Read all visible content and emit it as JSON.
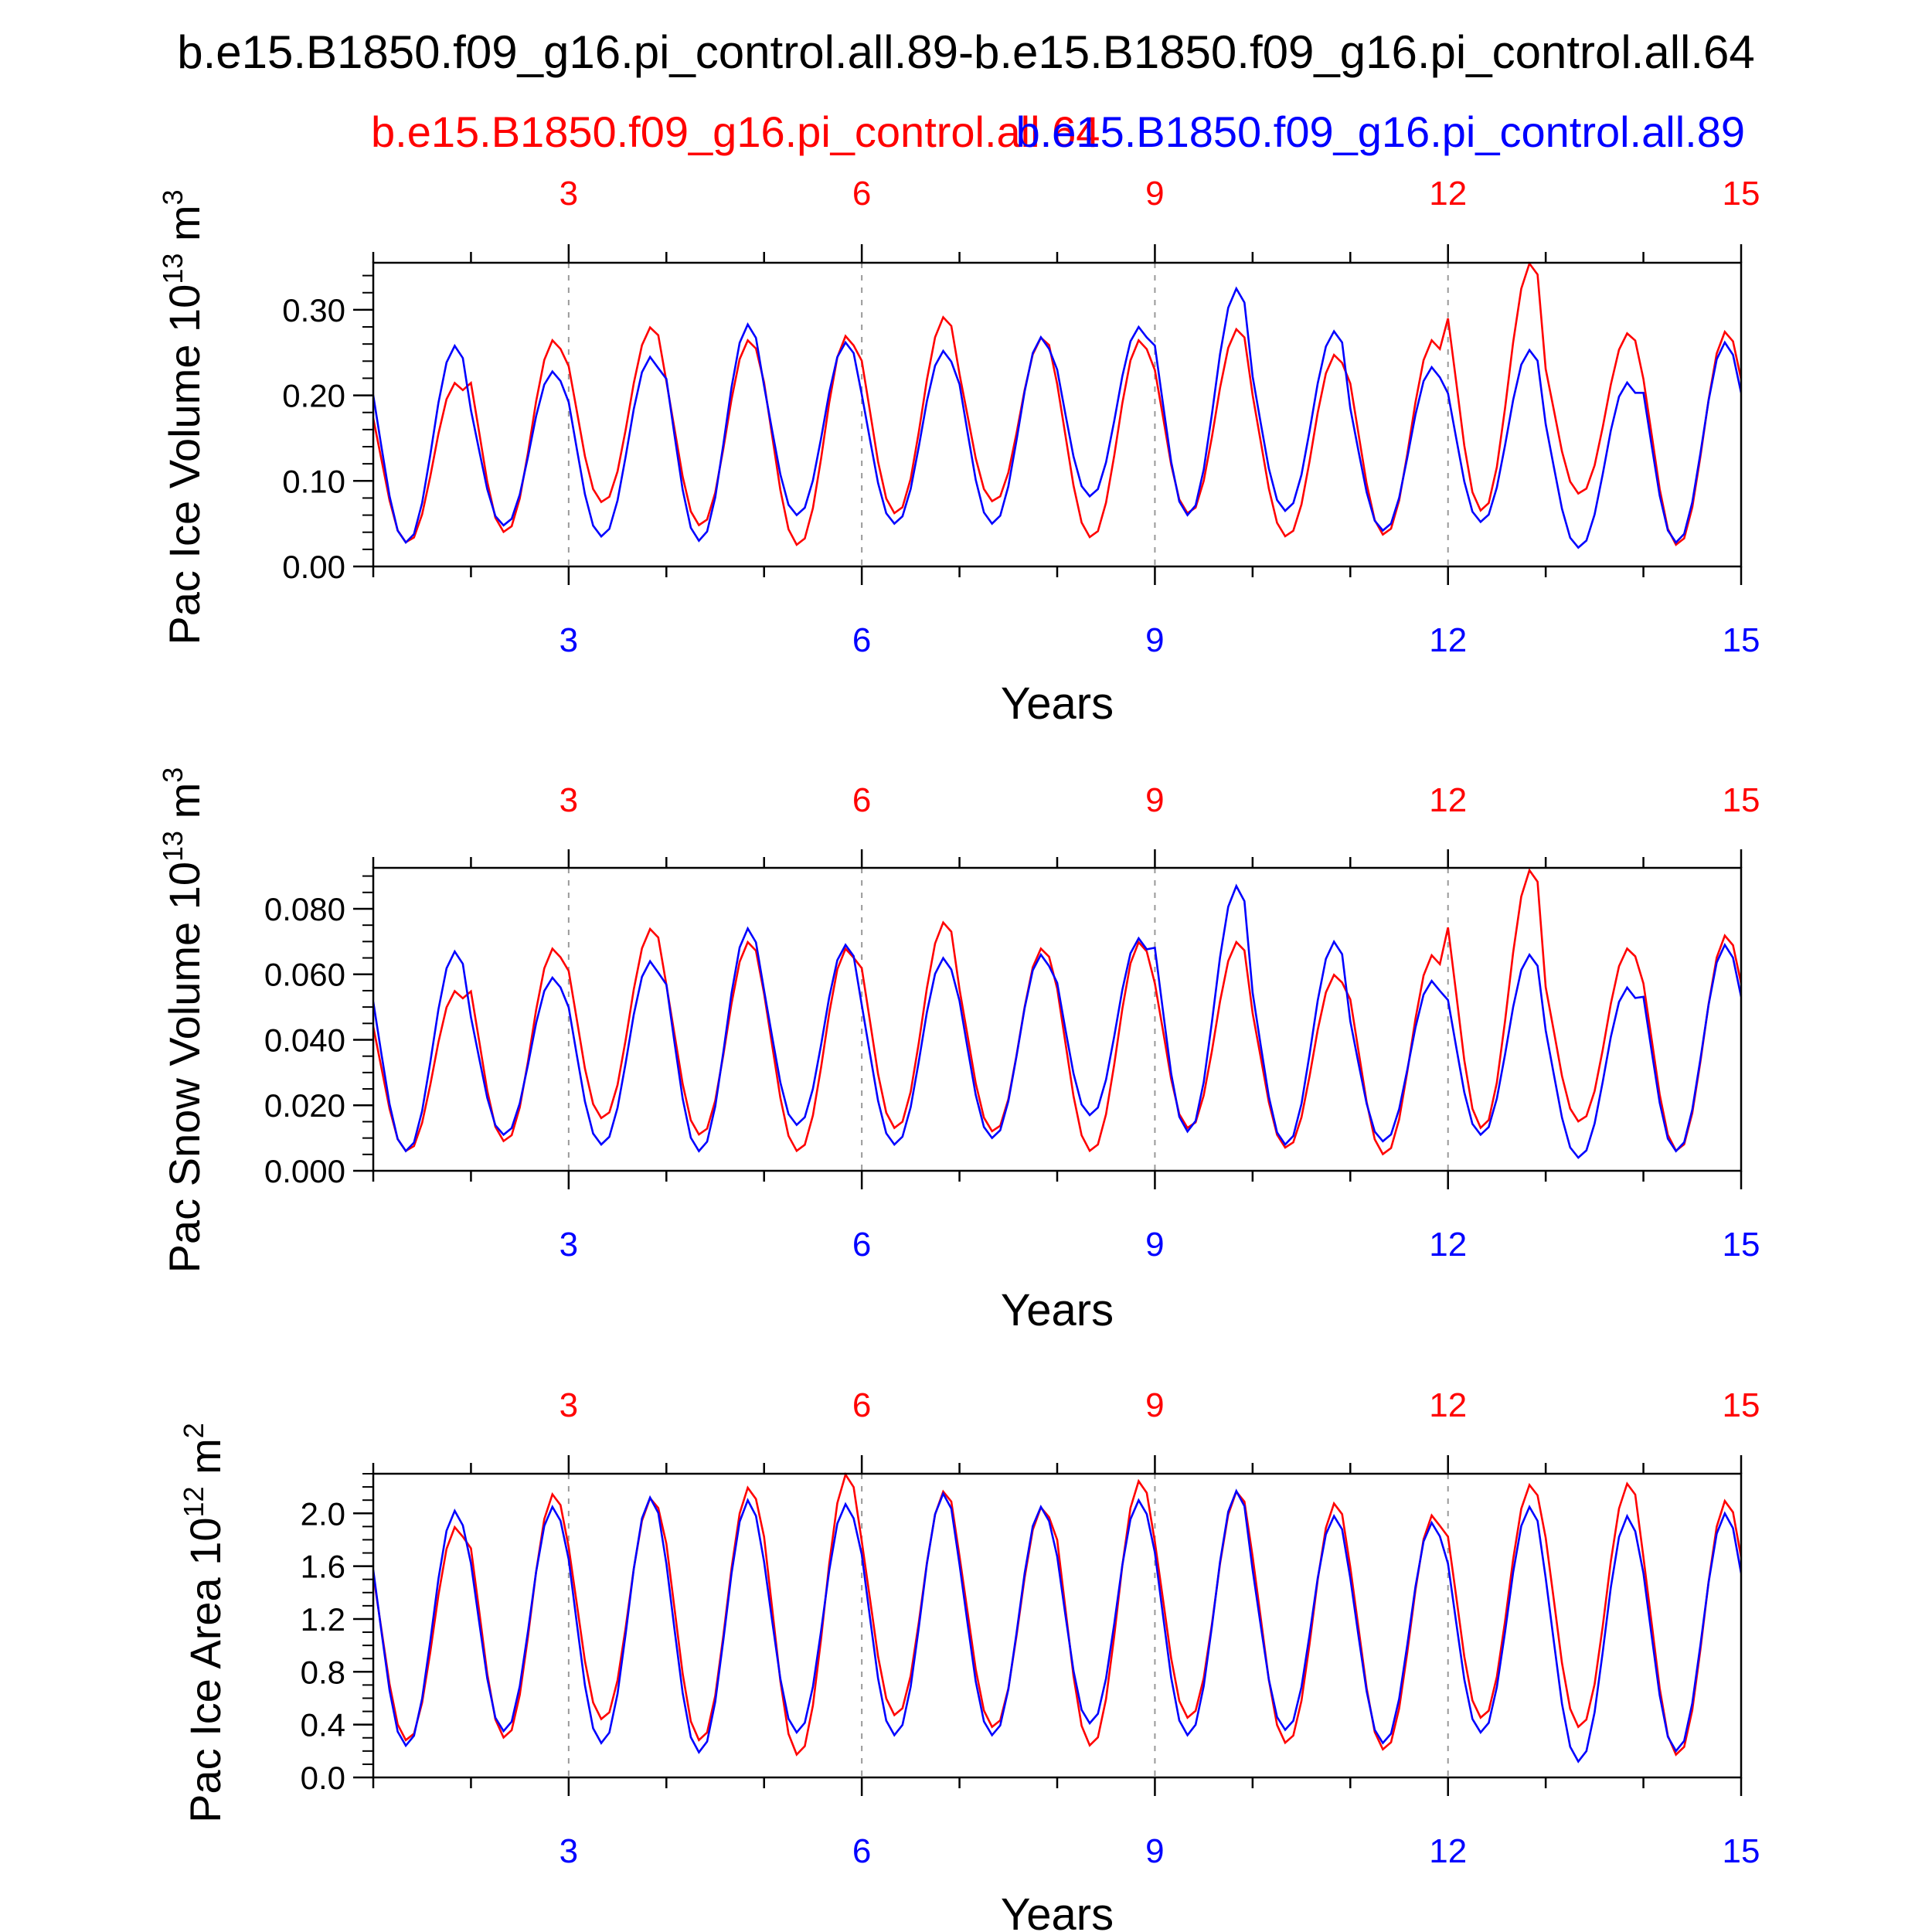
{
  "title": "b.e15.B1850.f09_g16.pi_control.all.89-b.e15.B1850.f09_g16.pi_control.all.64",
  "legend": {
    "red_label": "b.e15.B1850.f09_g16.pi_control.all.64",
    "blue_label": "b.e15.B1850.f09_g16.pi_control.all.89"
  },
  "colors": {
    "red": "#ff0000",
    "blue": "#0000ff",
    "axis": "#000000",
    "grid": "#999999"
  },
  "chart_data": [
    {
      "type": "line",
      "name": "ice-volume",
      "ylabel_main": "Pac Ice Volume 10",
      "ylabel_exp": "13",
      "ylabel_unit": " m",
      "ylabel_unit_exp": "3",
      "xlabel": "Years",
      "xlim": [
        1,
        15
      ],
      "ylim": [
        0,
        0.355
      ],
      "xticks": [
        3,
        6,
        9,
        12,
        15
      ],
      "xtick_labels": [
        "3",
        "6",
        "9",
        "12",
        "15"
      ],
      "yticks": [
        0,
        0.1,
        0.2,
        0.3
      ],
      "ytick_labels": [
        "0.00",
        "0.10",
        "0.20",
        "0.30"
      ],
      "yminor_step": 0.02,
      "series": [
        {
          "name": "b.e15.B1850.f09_g16.pi_control.all.64",
          "color": "red",
          "min": [
            0.028,
            0.04,
            0.075,
            0.048,
            0.025,
            0.062,
            0.076,
            0.034,
            0.062,
            0.035,
            0.037,
            0.065,
            0.085,
            0.025
          ],
          "max": [
            0.215,
            0.265,
            0.28,
            0.265,
            0.27,
            0.292,
            0.268,
            0.265,
            0.278,
            0.248,
            0.265,
            0.355,
            0.273,
            0.275
          ]
        },
        {
          "name": "b.e15.B1850.f09_g16.pi_control.all.89",
          "color": "blue",
          "min": [
            0.028,
            0.048,
            0.035,
            0.03,
            0.06,
            0.05,
            0.05,
            0.082,
            0.06,
            0.065,
            0.042,
            0.052,
            0.022,
            0.028
          ],
          "max": [
            0.258,
            0.228,
            0.245,
            0.283,
            0.262,
            0.252,
            0.268,
            0.28,
            0.325,
            0.275,
            0.233,
            0.253,
            0.215,
            0.262
          ]
        }
      ]
    },
    {
      "type": "line",
      "name": "snow-volume",
      "ylabel_main": "Pac Snow Volume 10",
      "ylabel_exp": "13",
      "ylabel_unit": " m",
      "ylabel_unit_exp": "3",
      "xlabel": "Years",
      "xlim": [
        1,
        15
      ],
      "ylim": [
        0,
        0.0925
      ],
      "xticks": [
        3,
        6,
        9,
        12,
        15
      ],
      "xtick_labels": [
        "3",
        "6",
        "9",
        "12",
        "15"
      ],
      "yticks": [
        0,
        0.02,
        0.04,
        0.06,
        0.08
      ],
      "ytick_labels": [
        "0.000",
        "0.020",
        "0.040",
        "0.060",
        "0.080"
      ],
      "yminor_step": 0.005,
      "series": [
        {
          "name": "b.e15.B1850.f09_g16.pi_control.all.64",
          "color": "red",
          "min": [
            0.006,
            0.009,
            0.016,
            0.011,
            0.006,
            0.013,
            0.012,
            0.006,
            0.013,
            0.007,
            0.005,
            0.013,
            0.015,
            0.006
          ],
          "max": [
            0.055,
            0.068,
            0.074,
            0.07,
            0.068,
            0.076,
            0.068,
            0.07,
            0.07,
            0.06,
            0.066,
            0.092,
            0.068,
            0.072
          ]
        },
        {
          "name": "b.e15.B1850.f09_g16.pi_control.all.89",
          "color": "blue",
          "min": [
            0.006,
            0.011,
            0.008,
            0.006,
            0.014,
            0.008,
            0.01,
            0.017,
            0.012,
            0.008,
            0.009,
            0.011,
            0.004,
            0.006
          ],
          "max": [
            0.067,
            0.059,
            0.064,
            0.074,
            0.069,
            0.065,
            0.066,
            0.071,
            0.087,
            0.07,
            0.058,
            0.066,
            0.056,
            0.069
          ]
        }
      ]
    },
    {
      "type": "line",
      "name": "ice-area",
      "ylabel_main": "Pac Ice Area 10",
      "ylabel_exp": "12",
      "ylabel_unit": " m",
      "ylabel_unit_exp": "2",
      "xlabel": "Years",
      "xlim": [
        1,
        15
      ],
      "ylim": [
        0,
        2.3
      ],
      "xticks": [
        3,
        6,
        9,
        12,
        15
      ],
      "xtick_labels": [
        "3",
        "6",
        "9",
        "12",
        "15"
      ],
      "yticks": [
        0,
        0.4,
        0.8,
        1.2,
        1.6,
        2.0
      ],
      "ytick_labels": [
        "0.0",
        "0.4",
        "0.8",
        "1.2",
        "1.6",
        "2.0"
      ],
      "yminor_step": 0.1,
      "series": [
        {
          "name": "b.e15.B1850.f09_g16.pi_control.all.64",
          "color": "red",
          "min": [
            0.28,
            0.3,
            0.44,
            0.28,
            0.17,
            0.47,
            0.38,
            0.24,
            0.45,
            0.26,
            0.21,
            0.45,
            0.38,
            0.17
          ],
          "max": [
            1.9,
            2.15,
            2.12,
            2.2,
            2.3,
            2.17,
            2.05,
            2.25,
            2.17,
            2.08,
            1.99,
            2.22,
            2.23,
            2.1
          ]
        },
        {
          "name": "b.e15.B1850.f09_g16.pi_control.all.89",
          "color": "blue",
          "min": [
            0.24,
            0.35,
            0.26,
            0.19,
            0.34,
            0.32,
            0.32,
            0.41,
            0.32,
            0.36,
            0.26,
            0.34,
            0.12,
            0.2
          ],
          "max": [
            2.02,
            2.05,
            2.12,
            2.1,
            2.07,
            2.15,
            2.05,
            2.1,
            2.17,
            1.98,
            1.93,
            2.05,
            1.98,
            2.0
          ]
        }
      ]
    }
  ]
}
